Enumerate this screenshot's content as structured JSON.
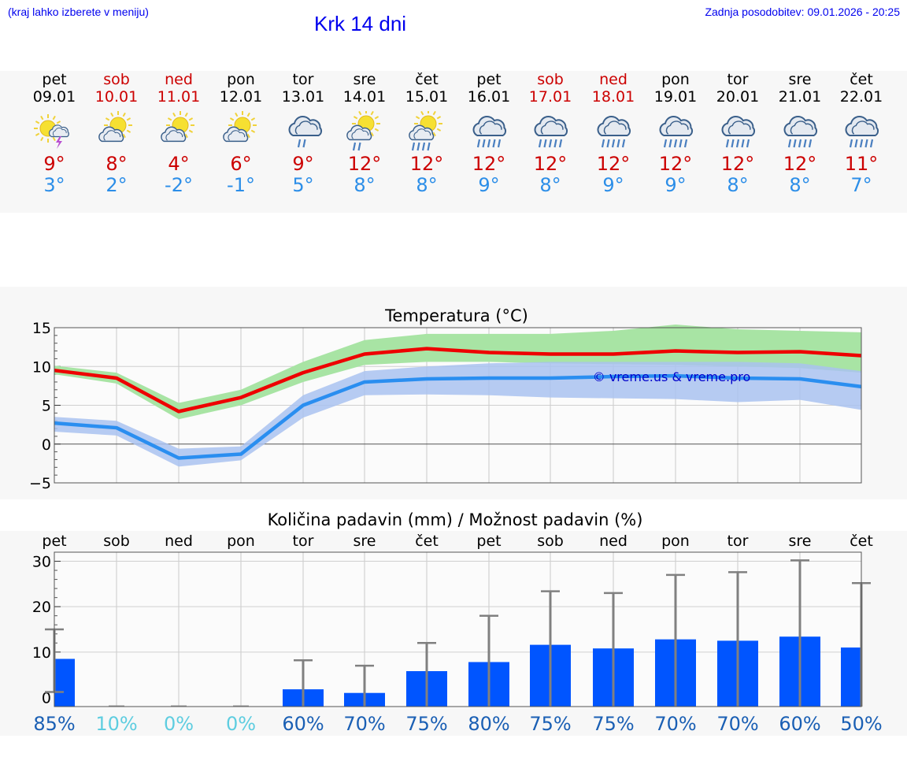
{
  "header": {
    "hint": "(kraj lahko izberete v meniju)",
    "title": "Krk 14 dni",
    "updated": "Zadnja posodobitev: 09.01.2026 - 20:25"
  },
  "days": [
    {
      "name": "pet",
      "date": "09.01",
      "weekend": false,
      "icon": "sun-cloud-thunder-icon",
      "max": "9°",
      "min": "3°"
    },
    {
      "name": "sob",
      "date": "10.01",
      "weekend": true,
      "icon": "sun-cloud-icon",
      "max": "8°",
      "min": "2°"
    },
    {
      "name": "ned",
      "date": "11.01",
      "weekend": true,
      "icon": "sun-cloud-icon",
      "max": "4°",
      "min": "-2°"
    },
    {
      "name": "pon",
      "date": "12.01",
      "weekend": false,
      "icon": "sun-cloud-icon",
      "max": "6°",
      "min": "-1°"
    },
    {
      "name": "tor",
      "date": "13.01",
      "weekend": false,
      "icon": "cloud-rain-icon",
      "max": "9°",
      "min": "5°"
    },
    {
      "name": "sre",
      "date": "14.01",
      "weekend": false,
      "icon": "sun-cloud-rain-icon",
      "max": "12°",
      "min": "8°"
    },
    {
      "name": "čet",
      "date": "15.01",
      "weekend": false,
      "icon": "sun-cloud-heavy-rain-icon",
      "max": "12°",
      "min": "8°"
    },
    {
      "name": "pet",
      "date": "16.01",
      "weekend": false,
      "icon": "cloud-heavy-rain-icon",
      "max": "12°",
      "min": "9°"
    },
    {
      "name": "sob",
      "date": "17.01",
      "weekend": true,
      "icon": "cloud-heavy-rain-icon",
      "max": "12°",
      "min": "8°"
    },
    {
      "name": "ned",
      "date": "18.01",
      "weekend": true,
      "icon": "cloud-heavy-rain-icon",
      "max": "12°",
      "min": "9°"
    },
    {
      "name": "pon",
      "date": "19.01",
      "weekend": false,
      "icon": "cloud-heavy-rain-icon",
      "max": "12°",
      "min": "9°"
    },
    {
      "name": "tor",
      "date": "20.01",
      "weekend": false,
      "icon": "cloud-heavy-rain-icon",
      "max": "12°",
      "min": "8°"
    },
    {
      "name": "sre",
      "date": "21.01",
      "weekend": false,
      "icon": "cloud-heavy-rain-icon",
      "max": "12°",
      "min": "8°"
    },
    {
      "name": "čet",
      "date": "22.01",
      "weekend": false,
      "icon": "cloud-heavy-rain-icon",
      "max": "11°",
      "min": "7°"
    }
  ],
  "colors": {
    "max_line": "#ee0000",
    "max_band": "#a8e4a4",
    "min_line": "#2a8ef0",
    "min_band": "#a9c2f0",
    "bar": "#0055ff",
    "error": "#808080",
    "weekend": "#cc0000",
    "pct_high": "#1a5fb4",
    "pct_low": "#5ecde0"
  },
  "chart_data": [
    {
      "type": "line",
      "title": "Temperatura (°C)",
      "ylim": [
        -5,
        15
      ],
      "yticks": [
        "15",
        "10",
        "5",
        "0",
        "−5"
      ],
      "watermark": "© vreme.us & vreme.pro",
      "series": [
        {
          "name": "max",
          "values": [
            9.5,
            8.5,
            4.2,
            6.0,
            9.2,
            11.6,
            12.3,
            11.8,
            11.6,
            11.6,
            12.0,
            11.8,
            11.9,
            11.4
          ],
          "band_low": [
            9.0,
            7.8,
            3.2,
            5.0,
            8.0,
            10.2,
            10.6,
            10.6,
            10.4,
            10.3,
            10.2,
            10.0,
            9.8,
            9.2
          ],
          "band_high": [
            10.1,
            9.2,
            5.3,
            7.0,
            10.6,
            13.4,
            14.2,
            14.2,
            14.2,
            14.6,
            15.4,
            14.8,
            14.6,
            14.4
          ]
        },
        {
          "name": "min",
          "values": [
            2.7,
            2.1,
            -1.8,
            -1.3,
            5.0,
            8.0,
            8.4,
            8.5,
            8.5,
            8.7,
            8.8,
            8.5,
            8.4,
            7.4
          ],
          "band_low": [
            1.6,
            1.1,
            -2.9,
            -2.1,
            3.4,
            6.3,
            6.4,
            6.3,
            6.0,
            5.9,
            5.8,
            5.4,
            5.7,
            4.4
          ],
          "band_high": [
            3.5,
            3.0,
            -0.6,
            -0.3,
            6.3,
            9.4,
            10.0,
            10.4,
            10.6,
            10.6,
            10.6,
            10.6,
            10.4,
            9.4
          ]
        }
      ]
    },
    {
      "type": "bar",
      "title": "Količina padavin (mm) / Možnost padavin (%)",
      "ylim": [
        -2,
        32
      ],
      "yticks": [
        "30",
        "20",
        "10",
        "0"
      ],
      "categories": [
        "pet",
        "sob",
        "ned",
        "pon",
        "tor",
        "sre",
        "čet",
        "pet",
        "sob",
        "ned",
        "pon",
        "tor",
        "sre",
        "čet"
      ],
      "values": [
        8.5,
        0,
        0,
        0,
        1.8,
        1.0,
        5.8,
        7.8,
        11.6,
        10.8,
        12.8,
        12.5,
        13.4,
        11.0
      ],
      "err_high": [
        15.0,
        0,
        0,
        0,
        8.2,
        7.0,
        12.0,
        18.0,
        23.4,
        23.0,
        27.0,
        27.6,
        30.2,
        25.2
      ],
      "chance": [
        "85%",
        "10%",
        "0%",
        "0%",
        "60%",
        "70%",
        "75%",
        "80%",
        "75%",
        "75%",
        "70%",
        "70%",
        "60%",
        "50%"
      ],
      "chance_high": [
        true,
        false,
        false,
        false,
        true,
        true,
        true,
        true,
        true,
        true,
        true,
        true,
        true,
        true
      ]
    }
  ]
}
